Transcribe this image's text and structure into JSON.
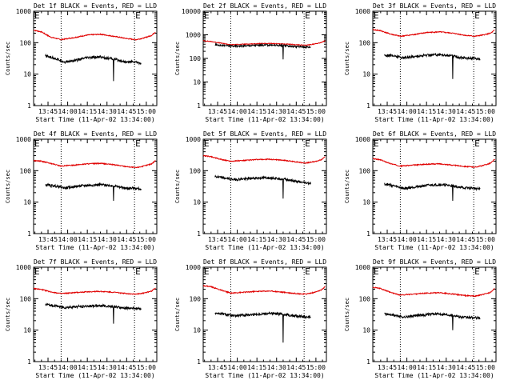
{
  "figure": {
    "ylabel": "Counts/sec",
    "xlabel": "Start Time (11-Apr-02 13:34:00)",
    "marker_label": "E",
    "colors": {
      "events": "#000000",
      "lld": "#e00000",
      "frame": "#000000"
    }
  },
  "chart_data": [
    {
      "type": "line",
      "title": "Det 1f BLACK = Events, RED = LLD",
      "xlabel": "Start Time (11-Apr-02 13:34:00)",
      "ylabel": "Counts/sec",
      "log_y": true,
      "ylim": [
        1,
        1000
      ],
      "yticks": [
        "1",
        "10",
        "100",
        "1000"
      ],
      "xlim": [
        "13:34",
        "15:08"
      ],
      "xticks": [
        "13:45",
        "14:00",
        "14:15",
        "14:30",
        "14:45",
        "15:00"
      ],
      "markers": [
        {
          "time": "13:34",
          "label": "E"
        },
        {
          "time": "14:51",
          "label": "E"
        }
      ],
      "vlines": [
        "13:55",
        "14:51"
      ],
      "series": [
        {
          "name": "LLD",
          "color": "#e00000",
          "x": [
            "13:34",
            "13:40",
            "13:47",
            "13:55",
            "14:05",
            "14:15",
            "14:25",
            "14:35",
            "14:45",
            "14:52",
            "14:58",
            "15:04",
            "15:07"
          ],
          "y": [
            250,
            220,
            150,
            125,
            145,
            175,
            185,
            160,
            135,
            125,
            140,
            170,
            220
          ]
        },
        {
          "name": "Events",
          "color": "#000000",
          "x": [
            "13:43",
            "13:50",
            "13:58",
            "14:05",
            "14:15",
            "14:25",
            "14:35",
            "14:40",
            "14:45",
            "14:50",
            "14:56"
          ],
          "y": [
            38,
            32,
            24,
            27,
            33,
            35,
            30,
            27,
            24,
            25,
            22
          ],
          "dips": [
            {
              "time": "14:35",
              "value": 6
            }
          ]
        }
      ]
    },
    {
      "type": "line",
      "title": "Det 2f BLACK = Events, RED = LLD",
      "xlabel": "Start Time (11-Apr-02 13:34:00)",
      "ylabel": "Counts/sec",
      "log_y": true,
      "ylim": [
        1,
        10000
      ],
      "yticks": [
        "1",
        "10",
        "100",
        "1000",
        "10000"
      ],
      "xlim": [
        "13:34",
        "15:08"
      ],
      "xticks": [
        "13:45",
        "14:00",
        "14:15",
        "14:30",
        "14:45",
        "15:00"
      ],
      "markers": [
        {
          "time": "13:34",
          "label": "E"
        },
        {
          "time": "14:51",
          "label": "E"
        }
      ],
      "vlines": [
        "13:55",
        "14:51"
      ],
      "series": [
        {
          "name": "LLD",
          "color": "#e00000",
          "x": [
            "13:34",
            "13:40",
            "13:47",
            "13:55",
            "14:05",
            "14:15",
            "14:25",
            "14:35",
            "14:45",
            "14:52",
            "14:58",
            "15:04",
            "15:07"
          ],
          "y": [
            560,
            520,
            450,
            380,
            400,
            420,
            430,
            410,
            380,
            360,
            400,
            470,
            560
          ]
        },
        {
          "name": "Events",
          "color": "#000000",
          "x": [
            "13:43",
            "13:50",
            "13:58",
            "14:05",
            "14:15",
            "14:25",
            "14:35",
            "14:40",
            "14:45",
            "14:50",
            "14:56"
          ],
          "y": [
            380,
            350,
            330,
            340,
            360,
            370,
            350,
            330,
            320,
            310,
            300
          ],
          "dips": [
            {
              "time": "14:35",
              "value": 90
            }
          ]
        }
      ]
    },
    {
      "type": "line",
      "title": "Det 3f BLACK = Events, RED = LLD",
      "xlabel": "Start Time (11-Apr-02 13:34:00)",
      "ylabel": "Counts/sec",
      "log_y": true,
      "ylim": [
        1,
        1000
      ],
      "yticks": [
        "1",
        "10",
        "100",
        "1000"
      ],
      "xlim": [
        "13:34",
        "15:08"
      ],
      "xticks": [
        "13:45",
        "14:00",
        "14:15",
        "14:30",
        "14:45",
        "15:00"
      ],
      "markers": [
        {
          "time": "13:34",
          "label": "E"
        },
        {
          "time": "14:51",
          "label": "E"
        }
      ],
      "vlines": [
        "13:55",
        "14:51"
      ],
      "series": [
        {
          "name": "LLD",
          "color": "#e00000",
          "x": [
            "13:34",
            "13:40",
            "13:47",
            "13:55",
            "14:05",
            "14:15",
            "14:25",
            "14:35",
            "14:45",
            "14:52",
            "14:58",
            "15:04",
            "15:07"
          ],
          "y": [
            260,
            240,
            190,
            160,
            180,
            210,
            220,
            200,
            170,
            160,
            175,
            200,
            250
          ]
        },
        {
          "name": "Events",
          "color": "#000000",
          "x": [
            "13:43",
            "13:50",
            "13:58",
            "14:05",
            "14:15",
            "14:25",
            "14:35",
            "14:40",
            "14:45",
            "14:50",
            "14:56"
          ],
          "y": [
            40,
            38,
            33,
            36,
            40,
            42,
            38,
            34,
            32,
            33,
            30
          ],
          "dips": [
            {
              "time": "14:35",
              "value": 7
            }
          ]
        }
      ]
    },
    {
      "type": "line",
      "title": "Det 4f BLACK = Events, RED = LLD",
      "xlabel": "Start Time (11-Apr-02 13:34:00)",
      "ylabel": "Counts/sec",
      "log_y": true,
      "ylim": [
        1,
        1000
      ],
      "yticks": [
        "1",
        "10",
        "100",
        "1000"
      ],
      "xlim": [
        "13:34",
        "15:08"
      ],
      "xticks": [
        "13:45",
        "14:00",
        "14:15",
        "14:30",
        "14:45",
        "15:00"
      ],
      "markers": [
        {
          "time": "13:34",
          "label": "E"
        },
        {
          "time": "14:51",
          "label": "E"
        }
      ],
      "vlines": [
        "13:55",
        "14:51"
      ],
      "series": [
        {
          "name": "LLD",
          "color": "#e00000",
          "x": [
            "13:34",
            "13:40",
            "13:47",
            "13:55",
            "14:05",
            "14:15",
            "14:25",
            "14:35",
            "14:45",
            "14:52",
            "14:58",
            "15:04",
            "15:07"
          ],
          "y": [
            210,
            200,
            170,
            140,
            150,
            165,
            170,
            155,
            135,
            125,
            140,
            165,
            210
          ]
        },
        {
          "name": "Events",
          "color": "#000000",
          "x": [
            "13:43",
            "13:50",
            "13:58",
            "14:05",
            "14:15",
            "14:25",
            "14:35",
            "14:40",
            "14:45",
            "14:50",
            "14:56"
          ],
          "y": [
            35,
            33,
            28,
            31,
            34,
            36,
            33,
            30,
            27,
            28,
            26
          ],
          "dips": [
            {
              "time": "14:35",
              "value": 11
            }
          ]
        }
      ]
    },
    {
      "type": "line",
      "title": "Det 5f BLACK = Events, RED = LLD",
      "xlabel": "Start Time (11-Apr-02 13:34:00)",
      "ylabel": "Counts/sec",
      "log_y": true,
      "ylim": [
        1,
        1000
      ],
      "yticks": [
        "1",
        "10",
        "100",
        "1000"
      ],
      "xlim": [
        "13:34",
        "15:08"
      ],
      "xticks": [
        "13:45",
        "14:00",
        "14:15",
        "14:30",
        "14:45",
        "15:00"
      ],
      "markers": [
        {
          "time": "13:34",
          "label": "E"
        },
        {
          "time": "14:51",
          "label": "E"
        }
      ],
      "vlines": [
        "13:55",
        "14:51"
      ],
      "series": [
        {
          "name": "LLD",
          "color": "#e00000",
          "x": [
            "13:34",
            "13:40",
            "13:47",
            "13:55",
            "14:05",
            "14:15",
            "14:25",
            "14:35",
            "14:45",
            "14:52",
            "14:58",
            "15:04",
            "15:07"
          ],
          "y": [
            300,
            280,
            230,
            200,
            210,
            225,
            230,
            215,
            190,
            175,
            190,
            220,
            280
          ]
        },
        {
          "name": "Events",
          "color": "#000000",
          "x": [
            "13:43",
            "13:50",
            "13:58",
            "14:05",
            "14:15",
            "14:25",
            "14:35",
            "14:40",
            "14:45",
            "14:50",
            "14:56"
          ],
          "y": [
            65,
            58,
            52,
            55,
            58,
            60,
            55,
            50,
            45,
            42,
            40
          ],
          "dips": [
            {
              "time": "14:35",
              "value": 13
            }
          ]
        }
      ]
    },
    {
      "type": "line",
      "title": "Det 6f BLACK = Events, RED = LLD",
      "xlabel": "Start Time (11-Apr-02 13:34:00)",
      "ylabel": "Counts/sec",
      "log_y": true,
      "ylim": [
        1,
        1000
      ],
      "yticks": [
        "1",
        "10",
        "100",
        "1000"
      ],
      "xlim": [
        "13:34",
        "15:08"
      ],
      "xticks": [
        "13:45",
        "14:00",
        "14:15",
        "14:30",
        "14:45",
        "15:00"
      ],
      "markers": [
        {
          "time": "13:34",
          "label": "E"
        },
        {
          "time": "14:51",
          "label": "E"
        }
      ],
      "vlines": [
        "13:55",
        "14:51"
      ],
      "series": [
        {
          "name": "LLD",
          "color": "#e00000",
          "x": [
            "13:34",
            "13:40",
            "13:47",
            "13:55",
            "14:05",
            "14:15",
            "14:25",
            "14:35",
            "14:45",
            "14:52",
            "14:58",
            "15:04",
            "15:07"
          ],
          "y": [
            240,
            220,
            170,
            140,
            150,
            160,
            165,
            150,
            135,
            130,
            145,
            175,
            230
          ]
        },
        {
          "name": "Events",
          "color": "#000000",
          "x": [
            "13:43",
            "13:50",
            "13:58",
            "14:05",
            "14:15",
            "14:25",
            "14:35",
            "14:40",
            "14:45",
            "14:50",
            "14:56"
          ],
          "y": [
            38,
            33,
            27,
            30,
            34,
            36,
            33,
            30,
            28,
            28,
            26
          ],
          "dips": [
            {
              "time": "14:35",
              "value": 11
            }
          ]
        }
      ]
    },
    {
      "type": "line",
      "title": "Det 7f BLACK = Events, RED = LLD",
      "xlabel": "Start Time (11-Apr-02 13:34:00)",
      "ylabel": "Counts/sec",
      "log_y": true,
      "ylim": [
        1,
        1000
      ],
      "yticks": [
        "1",
        "10",
        "100",
        "1000"
      ],
      "xlim": [
        "13:34",
        "15:08"
      ],
      "xticks": [
        "13:45",
        "14:00",
        "14:15",
        "14:30",
        "14:45",
        "15:00"
      ],
      "markers": [
        {
          "time": "13:34",
          "label": "E"
        },
        {
          "time": "14:51",
          "label": "E"
        }
      ],
      "vlines": [
        "13:55",
        "14:51"
      ],
      "series": [
        {
          "name": "LLD",
          "color": "#e00000",
          "x": [
            "13:34",
            "13:40",
            "13:47",
            "13:55",
            "14:05",
            "14:15",
            "14:25",
            "14:35",
            "14:45",
            "14:52",
            "14:58",
            "15:04",
            "15:07"
          ],
          "y": [
            210,
            195,
            165,
            145,
            155,
            165,
            170,
            160,
            145,
            140,
            150,
            175,
            220
          ]
        },
        {
          "name": "Events",
          "color": "#000000",
          "x": [
            "13:43",
            "13:50",
            "13:58",
            "14:05",
            "14:15",
            "14:25",
            "14:35",
            "14:40",
            "14:45",
            "14:50",
            "14:56"
          ],
          "y": [
            65,
            60,
            52,
            55,
            58,
            60,
            56,
            52,
            50,
            50,
            48
          ],
          "dips": [
            {
              "time": "14:35",
              "value": 16
            }
          ]
        }
      ]
    },
    {
      "type": "line",
      "title": "Det 8f BLACK = Events, RED = LLD",
      "xlabel": "Start Time (11-Apr-02 13:34:00)",
      "ylabel": "Counts/sec",
      "log_y": true,
      "ylim": [
        1,
        1000
      ],
      "yticks": [
        "1",
        "10",
        "100",
        "1000"
      ],
      "xlim": [
        "13:34",
        "15:08"
      ],
      "xticks": [
        "13:45",
        "14:00",
        "14:15",
        "14:30",
        "14:45",
        "15:00"
      ],
      "markers": [
        {
          "time": "13:34",
          "label": "E"
        },
        {
          "time": "14:51",
          "label": "E"
        }
      ],
      "vlines": [
        "13:55",
        "14:51"
      ],
      "series": [
        {
          "name": "LLD",
          "color": "#e00000",
          "x": [
            "13:34",
            "13:40",
            "13:47",
            "13:55",
            "14:05",
            "14:15",
            "14:25",
            "14:35",
            "14:45",
            "14:52",
            "14:58",
            "15:04",
            "15:07"
          ],
          "y": [
            260,
            240,
            190,
            150,
            160,
            170,
            175,
            160,
            145,
            140,
            155,
            185,
            240
          ]
        },
        {
          "name": "Events",
          "color": "#000000",
          "x": [
            "13:43",
            "13:50",
            "13:58",
            "14:05",
            "14:15",
            "14:25",
            "14:35",
            "14:40",
            "14:45",
            "14:50",
            "14:56"
          ],
          "y": [
            35,
            32,
            28,
            30,
            32,
            34,
            32,
            30,
            28,
            27,
            26
          ],
          "dips": [
            {
              "time": "14:35",
              "value": 4
            }
          ]
        }
      ]
    },
    {
      "type": "line",
      "title": "Det 9f BLACK = Events, RED = LLD",
      "xlabel": "Start Time (11-Apr-02 13:34:00)",
      "ylabel": "Counts/sec",
      "log_y": true,
      "ylim": [
        1,
        1000
      ],
      "yticks": [
        "1",
        "10",
        "100",
        "1000"
      ],
      "xlim": [
        "13:34",
        "15:08"
      ],
      "xticks": [
        "13:45",
        "14:00",
        "14:15",
        "14:30",
        "14:45",
        "15:00"
      ],
      "markers": [
        {
          "time": "13:34",
          "label": "E"
        },
        {
          "time": "14:51",
          "label": "E"
        }
      ],
      "vlines": [
        "13:55",
        "14:51"
      ],
      "series": [
        {
          "name": "LLD",
          "color": "#e00000",
          "x": [
            "13:34",
            "13:40",
            "13:47",
            "13:55",
            "14:05",
            "14:15",
            "14:25",
            "14:35",
            "14:45",
            "14:52",
            "14:58",
            "15:04",
            "15:07"
          ],
          "y": [
            230,
            210,
            160,
            130,
            140,
            150,
            155,
            140,
            125,
            120,
            135,
            160,
            210
          ]
        },
        {
          "name": "Events",
          "color": "#000000",
          "x": [
            "13:43",
            "13:50",
            "13:58",
            "14:05",
            "14:15",
            "14:25",
            "14:35",
            "14:40",
            "14:45",
            "14:50",
            "14:56"
          ],
          "y": [
            33,
            30,
            26,
            28,
            31,
            33,
            30,
            27,
            25,
            25,
            24
          ],
          "dips": [
            {
              "time": "14:35",
              "value": 10
            }
          ]
        }
      ]
    }
  ]
}
